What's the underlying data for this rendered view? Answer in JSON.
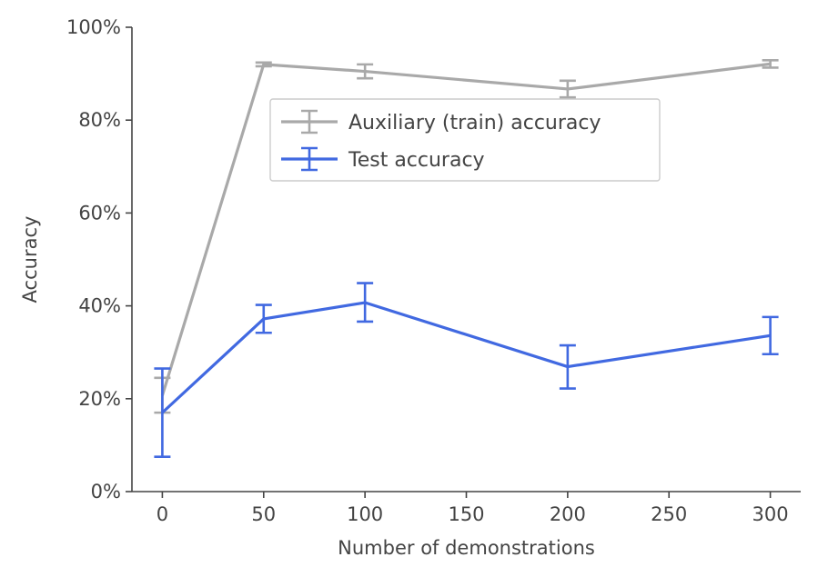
{
  "chart_data": {
    "type": "line",
    "xlabel": "Number of demonstrations",
    "ylabel": "Accuracy",
    "xlim": [
      -15,
      315
    ],
    "ylim": [
      0,
      100
    ],
    "xticks": [
      0,
      50,
      100,
      150,
      200,
      250,
      300
    ],
    "xtick_labels": [
      "0",
      "50",
      "100",
      "150",
      "200",
      "250",
      "300"
    ],
    "yticks": [
      0,
      20,
      40,
      60,
      80,
      100
    ],
    "ytick_labels": [
      "0%",
      "20%",
      "40%",
      "60%",
      "80%",
      "100%"
    ],
    "grid": false,
    "legend_position": "upper-center",
    "series": [
      {
        "name": "Auxiliary (train) accuracy",
        "color": "#a9a9a9",
        "x": [
          0,
          50,
          100,
          200,
          300
        ],
        "y": [
          20.7,
          92.0,
          90.5,
          86.7,
          92.1
        ],
        "err_low": [
          17.0,
          91.6,
          89.0,
          84.9,
          91.3
        ],
        "err_high": [
          24.5,
          92.4,
          92.0,
          88.5,
          92.9
        ]
      },
      {
        "name": "Test accuracy",
        "color": "#4169e1",
        "x": [
          0,
          50,
          100,
          200,
          300
        ],
        "y": [
          17.0,
          37.2,
          40.7,
          26.9,
          33.6
        ],
        "err_low": [
          7.5,
          34.2,
          36.6,
          22.2,
          29.6
        ],
        "err_high": [
          26.5,
          40.2,
          44.9,
          31.5,
          37.6
        ]
      }
    ]
  }
}
